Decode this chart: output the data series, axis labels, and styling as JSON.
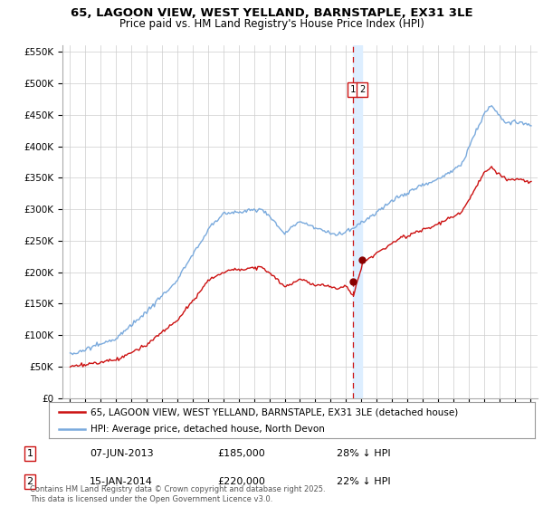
{
  "title_line1": "65, LAGOON VIEW, WEST YELLAND, BARNSTAPLE, EX31 3LE",
  "title_line2": "Price paid vs. HM Land Registry's House Price Index (HPI)",
  "background_color": "#ffffff",
  "plot_bg_color": "#ffffff",
  "grid_color": "#cccccc",
  "hpi_color": "#7aaadd",
  "price_color": "#cc1111",
  "dashed_line_color": "#cc1111",
  "band_color": "#ddeeff",
  "sale1_date_x": 2013.44,
  "sale1_price": 185000,
  "sale2_date_x": 2014.04,
  "sale2_price": 220000,
  "ylim_min": 0,
  "ylim_max": 560000,
  "xlim_min": 1994.5,
  "xlim_max": 2025.5,
  "footnote": "Contains HM Land Registry data © Crown copyright and database right 2025.\nThis data is licensed under the Open Government Licence v3.0.",
  "legend_entry1": "65, LAGOON VIEW, WEST YELLAND, BARNSTAPLE, EX31 3LE (detached house)",
  "legend_entry2": "HPI: Average price, detached house, North Devon",
  "table_row1": [
    "1",
    "07-JUN-2013",
    "£185,000",
    "28% ↓ HPI"
  ],
  "table_row2": [
    "2",
    "15-JAN-2014",
    "£220,000",
    "22% ↓ HPI"
  ]
}
